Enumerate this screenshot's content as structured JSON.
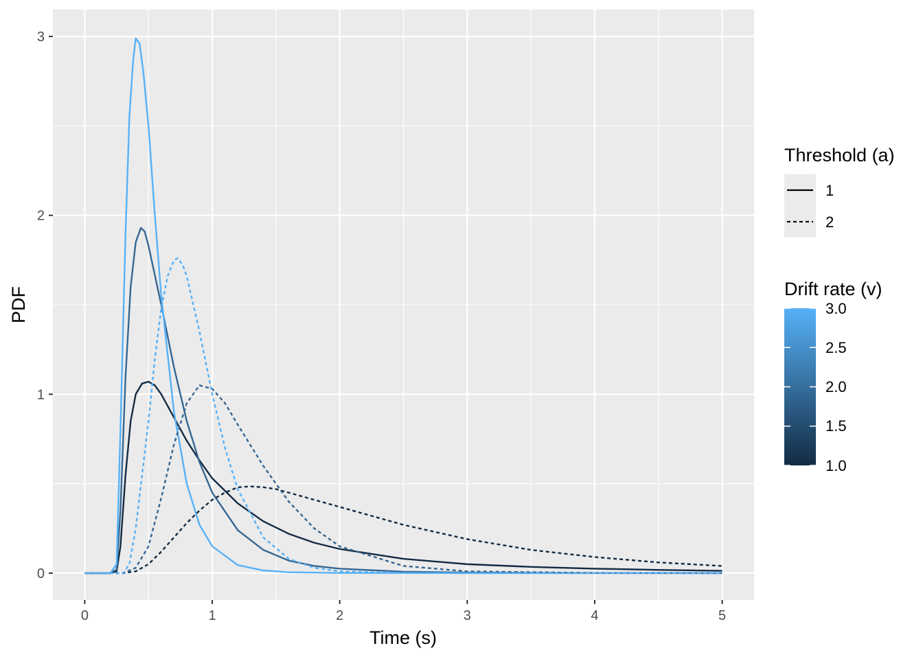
{
  "chart_data": {
    "type": "line",
    "xlabel": "Time (s)",
    "ylabel": "PDF",
    "xlim": [
      -0.25,
      5.25
    ],
    "ylim": [
      -0.15,
      3.15
    ],
    "x_ticks": [
      0,
      1,
      2,
      3,
      4,
      5
    ],
    "y_ticks": [
      0,
      1,
      2,
      3
    ],
    "grid": true,
    "background": "#EBEBEB",
    "legend_position": "right",
    "linetype_legend": {
      "title": "Threshold (a)",
      "entries": [
        {
          "label": "1",
          "linetype": "solid"
        },
        {
          "label": "2",
          "linetype": "dashed"
        }
      ]
    },
    "color_legend": {
      "title": "Drift rate (v)",
      "ticks": [
        "3.0",
        "2.5",
        "2.0",
        "1.5",
        "1.0"
      ],
      "low_color": "#132B43",
      "high_color": "#56B1F7"
    },
    "series": [
      {
        "threshold": "1",
        "drift": 1,
        "color": "#132B43",
        "linetype": "solid",
        "points": [
          [
            0,
            0
          ],
          [
            0.2,
            0
          ],
          [
            0.25,
            0.01
          ],
          [
            0.28,
            0.15
          ],
          [
            0.32,
            0.55
          ],
          [
            0.36,
            0.85
          ],
          [
            0.4,
            1.0
          ],
          [
            0.45,
            1.06
          ],
          [
            0.5,
            1.07
          ],
          [
            0.55,
            1.05
          ],
          [
            0.6,
            1.0
          ],
          [
            0.7,
            0.87
          ],
          [
            0.8,
            0.74
          ],
          [
            0.9,
            0.63
          ],
          [
            1.0,
            0.53
          ],
          [
            1.2,
            0.39
          ],
          [
            1.4,
            0.29
          ],
          [
            1.6,
            0.22
          ],
          [
            1.8,
            0.17
          ],
          [
            2.0,
            0.135
          ],
          [
            2.5,
            0.08
          ],
          [
            3.0,
            0.05
          ],
          [
            3.5,
            0.035
          ],
          [
            4.0,
            0.025
          ],
          [
            4.5,
            0.018
          ],
          [
            5.0,
            0.013
          ]
        ]
      },
      {
        "threshold": "1",
        "drift": 2,
        "color": "#356692",
        "linetype": "solid",
        "points": [
          [
            0,
            0
          ],
          [
            0.2,
            0
          ],
          [
            0.25,
            0.02
          ],
          [
            0.28,
            0.35
          ],
          [
            0.32,
            1.1
          ],
          [
            0.36,
            1.6
          ],
          [
            0.4,
            1.85
          ],
          [
            0.44,
            1.93
          ],
          [
            0.47,
            1.91
          ],
          [
            0.5,
            1.83
          ],
          [
            0.6,
            1.5
          ],
          [
            0.7,
            1.15
          ],
          [
            0.8,
            0.85
          ],
          [
            0.9,
            0.62
          ],
          [
            1.0,
            0.45
          ],
          [
            1.2,
            0.24
          ],
          [
            1.4,
            0.13
          ],
          [
            1.6,
            0.07
          ],
          [
            1.8,
            0.04
          ],
          [
            2.0,
            0.025
          ],
          [
            2.5,
            0.008
          ],
          [
            3.0,
            0.003
          ],
          [
            4.0,
            0.0005
          ],
          [
            5.0,
            0
          ]
        ]
      },
      {
        "threshold": "1",
        "drift": 3,
        "color": "#56B1F7",
        "linetype": "solid",
        "points": [
          [
            0,
            0
          ],
          [
            0.2,
            0
          ],
          [
            0.25,
            0.05
          ],
          [
            0.28,
            0.8
          ],
          [
            0.32,
            1.9
          ],
          [
            0.35,
            2.55
          ],
          [
            0.38,
            2.87
          ],
          [
            0.4,
            2.99
          ],
          [
            0.43,
            2.96
          ],
          [
            0.46,
            2.8
          ],
          [
            0.5,
            2.5
          ],
          [
            0.55,
            2.0
          ],
          [
            0.6,
            1.55
          ],
          [
            0.7,
            0.9
          ],
          [
            0.8,
            0.5
          ],
          [
            0.9,
            0.27
          ],
          [
            1.0,
            0.15
          ],
          [
            1.2,
            0.045
          ],
          [
            1.4,
            0.015
          ],
          [
            1.6,
            0.005
          ],
          [
            2.0,
            0.001
          ],
          [
            3.0,
            0
          ],
          [
            5.0,
            0
          ]
        ]
      },
      {
        "threshold": "2",
        "drift": 1,
        "color": "#132B43",
        "linetype": "dashed",
        "points": [
          [
            0,
            0
          ],
          [
            0.3,
            0
          ],
          [
            0.4,
            0.01
          ],
          [
            0.5,
            0.05
          ],
          [
            0.6,
            0.12
          ],
          [
            0.7,
            0.2
          ],
          [
            0.8,
            0.28
          ],
          [
            0.9,
            0.35
          ],
          [
            1.0,
            0.41
          ],
          [
            1.1,
            0.45
          ],
          [
            1.2,
            0.48
          ],
          [
            1.3,
            0.485
          ],
          [
            1.4,
            0.48
          ],
          [
            1.5,
            0.47
          ],
          [
            1.6,
            0.45
          ],
          [
            1.8,
            0.41
          ],
          [
            2.0,
            0.37
          ],
          [
            2.2,
            0.33
          ],
          [
            2.5,
            0.27
          ],
          [
            3.0,
            0.19
          ],
          [
            3.5,
            0.13
          ],
          [
            4.0,
            0.09
          ],
          [
            4.5,
            0.06
          ],
          [
            5.0,
            0.04
          ]
        ]
      },
      {
        "threshold": "2",
        "drift": 2,
        "color": "#356692",
        "linetype": "dashed",
        "points": [
          [
            0,
            0
          ],
          [
            0.3,
            0
          ],
          [
            0.4,
            0.03
          ],
          [
            0.5,
            0.15
          ],
          [
            0.6,
            0.42
          ],
          [
            0.7,
            0.72
          ],
          [
            0.8,
            0.95
          ],
          [
            0.9,
            1.05
          ],
          [
            1.0,
            1.03
          ],
          [
            1.1,
            0.95
          ],
          [
            1.2,
            0.83
          ],
          [
            1.4,
            0.6
          ],
          [
            1.6,
            0.4
          ],
          [
            1.8,
            0.25
          ],
          [
            2.0,
            0.15
          ],
          [
            2.5,
            0.04
          ],
          [
            3.0,
            0.01
          ],
          [
            4.0,
            0.001
          ],
          [
            5.0,
            0
          ]
        ]
      },
      {
        "threshold": "2",
        "drift": 3,
        "color": "#56B1F7",
        "linetype": "dashed",
        "points": [
          [
            0,
            0
          ],
          [
            0.3,
            0
          ],
          [
            0.35,
            0.05
          ],
          [
            0.4,
            0.25
          ],
          [
            0.5,
            0.85
          ],
          [
            0.55,
            1.2
          ],
          [
            0.6,
            1.48
          ],
          [
            0.65,
            1.66
          ],
          [
            0.7,
            1.75
          ],
          [
            0.73,
            1.76
          ],
          [
            0.77,
            1.72
          ],
          [
            0.8,
            1.66
          ],
          [
            0.9,
            1.35
          ],
          [
            1.0,
            1.0
          ],
          [
            1.1,
            0.7
          ],
          [
            1.2,
            0.47
          ],
          [
            1.4,
            0.2
          ],
          [
            1.6,
            0.08
          ],
          [
            1.8,
            0.03
          ],
          [
            2.0,
            0.01
          ],
          [
            2.5,
            0.001
          ],
          [
            3.0,
            0
          ],
          [
            5.0,
            0
          ]
        ]
      }
    ]
  }
}
